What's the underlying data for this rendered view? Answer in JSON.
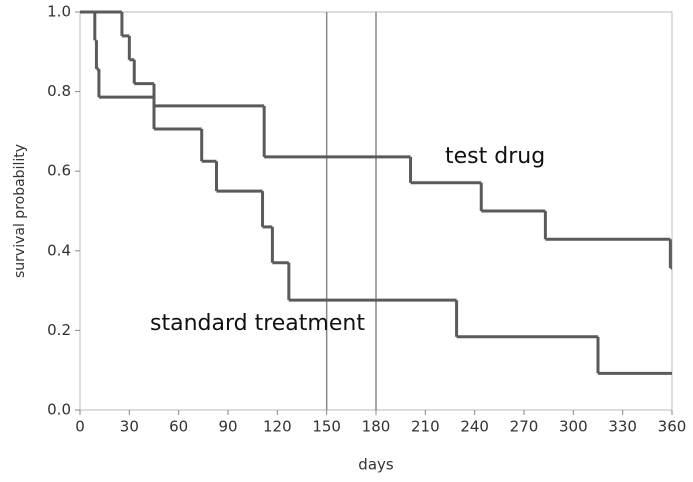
{
  "chart_data": {
    "type": "step",
    "xlabel": "days",
    "ylabel": "survival probability",
    "xlim": [
      0,
      360
    ],
    "ylim": [
      0,
      1
    ],
    "xticks": [
      0,
      30,
      60,
      90,
      120,
      150,
      180,
      210,
      240,
      270,
      300,
      330,
      360
    ],
    "yticks": [
      {
        "value": 0,
        "label": "0.0"
      },
      {
        "value": 0.2,
        "label": "0.2"
      },
      {
        "value": 0.4,
        "label": "0.4"
      },
      {
        "value": 0.6,
        "label": "0.6"
      },
      {
        "value": 0.8,
        "label": "0.8"
      },
      {
        "value": 1,
        "label": "1.0"
      }
    ],
    "vlines": [
      150,
      180
    ],
    "series": [
      {
        "name": "test drug",
        "color": "#5a5a5a",
        "x": [
          0,
          9,
          10,
          11.5,
          45,
          112,
          201,
          244,
          283,
          359
        ],
        "values": [
          1.0,
          0.929,
          0.857,
          0.786,
          0.764,
          0.636,
          0.571,
          0.5,
          0.429,
          0.357
        ]
      },
      {
        "name": "standard treatment",
        "color": "#5a5a5a",
        "x": [
          0,
          25.5,
          30,
          33,
          45,
          74,
          83,
          111,
          117,
          127,
          229,
          315
        ],
        "values": [
          1.0,
          0.94,
          0.88,
          0.82,
          0.706,
          0.625,
          0.55,
          0.46,
          0.37,
          0.276,
          0.184,
          0.092
        ]
      }
    ]
  }
}
